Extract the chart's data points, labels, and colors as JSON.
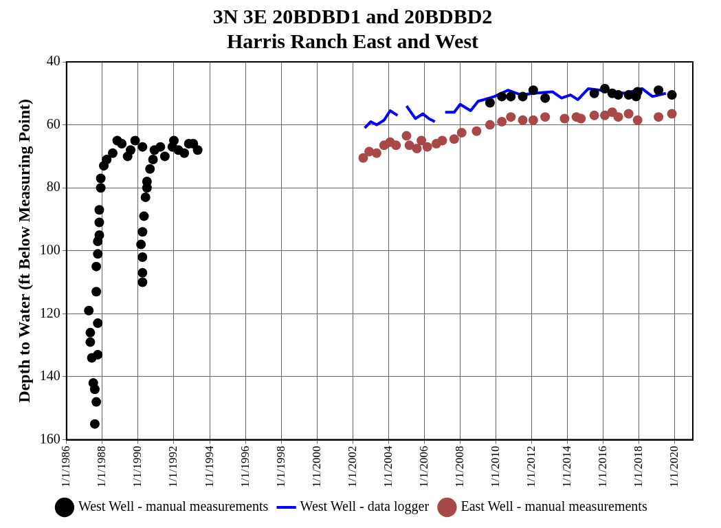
{
  "chart_data": {
    "type": "scatter",
    "title": "3N 3E 20BDBD1 and 20BDBD2",
    "subtitle": "Harris Ranch East and West",
    "ylabel": "Depth to Water (ft Below Measuring Point)",
    "xlim": [
      "1986-01-01",
      "2021-01-01"
    ],
    "xticks": [
      {
        "value": "1986-01-01",
        "label": "1/1/1986"
      },
      {
        "value": "1988-01-01",
        "label": "1/1/1988"
      },
      {
        "value": "1990-01-01",
        "label": "1/1/1990"
      },
      {
        "value": "1992-01-01",
        "label": "1/1/1992"
      },
      {
        "value": "1994-01-01",
        "label": "1/1/1994"
      },
      {
        "value": "1996-01-01",
        "label": "1/1/1996"
      },
      {
        "value": "1998-01-01",
        "label": "1/1/1998"
      },
      {
        "value": "2000-01-01",
        "label": "1/1/2000"
      },
      {
        "value": "2002-01-01",
        "label": "1/1/2002"
      },
      {
        "value": "2004-01-01",
        "label": "1/1/2004"
      },
      {
        "value": "2006-01-01",
        "label": "1/1/2006"
      },
      {
        "value": "2008-01-01",
        "label": "1/1/2008"
      },
      {
        "value": "2010-01-01",
        "label": "1/1/2010"
      },
      {
        "value": "2012-01-01",
        "label": "1/1/2012"
      },
      {
        "value": "2014-01-01",
        "label": "1/1/2014"
      },
      {
        "value": "2016-01-01",
        "label": "1/1/2016"
      },
      {
        "value": "2018-01-01",
        "label": "1/1/2018"
      },
      {
        "value": "2020-01-01",
        "label": "1/1/2020"
      }
    ],
    "ylim": [
      160,
      40
    ],
    "yticks": [
      40,
      60,
      80,
      100,
      120,
      140,
      160
    ],
    "grid": true,
    "legend": "bottom",
    "series": [
      {
        "name": "West Well - manual measurements",
        "type": "scatter",
        "marker": "circle",
        "color": "#000000",
        "x": [
          "1987-08",
          "1987-09",
          "1987-08",
          "1987-07",
          "1987-10",
          "1987-06",
          "1987-05",
          "1987-05",
          "1987-10",
          "1987-04",
          "1987-09",
          "1987-09",
          "1987-10",
          "1987-10",
          "1987-11",
          "1987-11",
          "1987-11",
          "1987-12",
          "1987-12",
          "1988-02",
          "1988-04",
          "1988-08",
          "1988-11",
          "1989-02",
          "1989-06",
          "1989-08",
          "1989-11",
          "1990-04",
          "1990-04",
          "1990-04",
          "1990-04",
          "1990-03",
          "1990-04",
          "1990-05",
          "1990-06",
          "1990-07",
          "1990-07",
          "1990-09",
          "1990-11",
          "1990-12",
          "1991-04",
          "1991-07",
          "1991-12",
          "1992-01",
          "1992-04",
          "1992-08",
          "1992-11",
          "1993-02",
          "1993-05",
          "2009-09",
          "2010-05",
          "2010-11",
          "2011-07",
          "2012-02",
          "2012-10",
          "2015-07",
          "2016-02",
          "2016-07",
          "2016-11",
          "2017-06",
          "2017-11",
          "2017-12",
          "2019-02",
          "2019-11"
        ],
        "values": [
          155,
          148,
          144,
          142,
          133,
          134,
          129,
          126,
          123,
          119,
          113,
          105,
          101,
          97,
          95,
          91,
          87,
          80,
          77,
          73,
          71,
          69,
          65,
          66,
          70,
          68,
          65,
          67,
          110,
          107,
          102,
          98,
          94,
          89,
          83,
          80,
          78,
          74,
          71,
          68,
          67,
          70,
          67,
          65,
          68,
          69,
          66,
          66,
          68,
          53,
          51,
          51,
          51,
          49,
          51.5,
          50,
          48.5,
          50,
          50.5,
          50.5,
          51,
          49.5,
          49,
          50.5
        ]
      },
      {
        "name": "West Well - data logger",
        "type": "line",
        "marker": "none",
        "color": "#0000ff",
        "x": [
          "2002-09",
          "2003-01",
          "2003-05",
          "2003-10",
          "2004-02",
          "2004-07",
          null,
          "2005-01",
          "2005-07",
          "2005-12",
          "2006-04",
          "2006-08",
          null,
          "2007-03",
          "2007-09",
          "2008-01",
          "2008-08",
          "2009-01",
          "2009-05",
          "2009-12",
          "2010-09",
          "2011-06",
          "2012-02",
          "2013-03",
          "2013-09",
          "2014-03",
          "2014-08",
          "2015-03",
          "2017-04",
          "2018-03",
          "2018-10",
          "2019-07"
        ],
        "values": [
          61,
          59,
          60,
          58.5,
          55.5,
          57,
          null,
          54,
          58,
          56.5,
          58,
          59,
          null,
          56,
          56,
          53.5,
          55.5,
          52.5,
          52,
          51,
          49,
          50.5,
          50,
          49.5,
          51.5,
          50.5,
          52,
          48.5,
          50,
          48.5,
          51,
          50
        ]
      },
      {
        "name": "East Well - manual measurements",
        "type": "scatter",
        "marker": "circle",
        "color": "#a84848",
        "x": [
          "2002-08",
          "2002-12",
          "2003-05",
          "2003-10",
          "2004-02",
          "2004-06",
          "2005-01",
          "2005-03",
          "2005-08",
          "2005-11",
          "2006-03",
          "2006-09",
          "2007-01",
          "2007-09",
          "2008-02",
          "2008-12",
          "2009-09",
          "2010-05",
          "2010-11",
          "2011-07",
          "2012-02",
          "2012-10",
          "2013-11",
          "2014-07",
          "2014-10",
          "2015-07",
          "2016-02",
          "2016-07",
          "2016-11",
          "2017-06",
          "2017-12",
          "2019-02",
          "2019-11"
        ],
        "values": [
          70.5,
          68.5,
          69,
          66.5,
          65.5,
          66.5,
          63.5,
          66.5,
          67.5,
          65,
          67,
          66,
          65,
          64.5,
          62.5,
          62,
          60,
          59,
          57.5,
          58.5,
          58.5,
          57.5,
          58,
          57.5,
          58,
          57,
          57,
          56,
          57.5,
          56.5,
          58.5,
          57.5,
          56.5
        ]
      }
    ]
  }
}
